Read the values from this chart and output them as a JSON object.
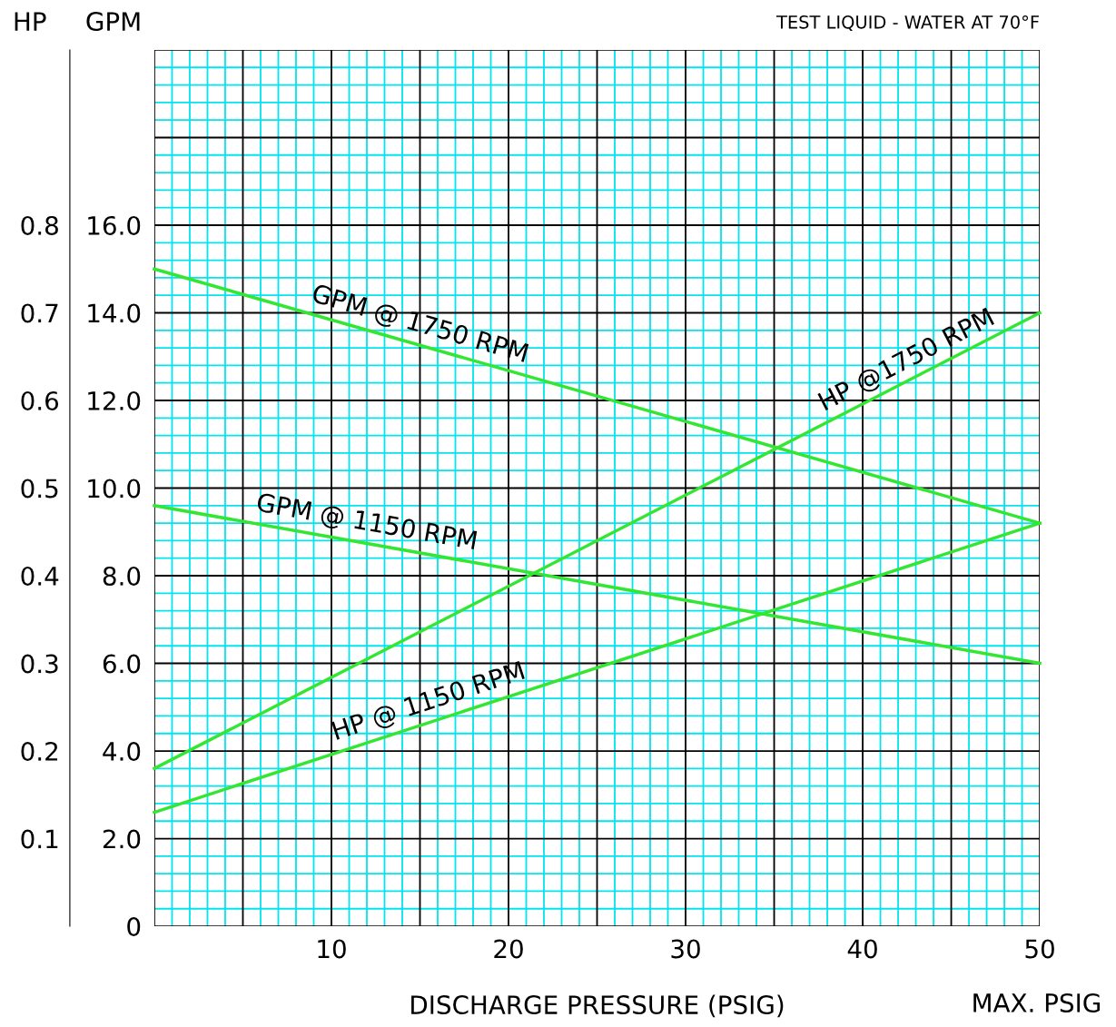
{
  "chart_data": {
    "type": "line",
    "xlabel": "DISCHARGE PRESSURE (PSIG)",
    "ylabel": "GPM",
    "y2label": "HP",
    "annotations": [
      "TEST LIQUID - WATER AT 70°F",
      "MAX. PSIG"
    ],
    "x": [
      0,
      50
    ],
    "series": [
      {
        "name": "GPM @ 1750 RPM",
        "color": "#33e633",
        "values": [
          15.0,
          9.2
        ]
      },
      {
        "name": "GPM @ 1150 RPM",
        "color": "#33e633",
        "values": [
          9.6,
          6.0
        ]
      },
      {
        "name": "HP @1750 RPM",
        "color": "#33e633",
        "values": [
          0.18,
          0.7
        ],
        "axis": "y2"
      },
      {
        "name": "HP @ 1150 RPM",
        "color": "#33e633",
        "values": [
          0.13,
          0.46
        ],
        "axis": "y2"
      }
    ],
    "xlim": [
      0,
      50
    ],
    "xticks": [
      {
        "value": 0,
        "label": null
      },
      {
        "value": 1,
        "label": null
      },
      {
        "value": 2,
        "label": null
      },
      {
        "value": 3,
        "label": null
      },
      {
        "value": 4,
        "label": null
      },
      {
        "value": 5,
        "label": null
      },
      {
        "value": 6,
        "label": null
      },
      {
        "value": 7,
        "label": null
      },
      {
        "value": 8,
        "label": null
      },
      {
        "value": 9,
        "label": null
      },
      10,
      {
        "value": 11,
        "label": null
      },
      {
        "value": 12,
        "label": null
      },
      {
        "value": 13,
        "label": null
      },
      {
        "value": 14,
        "label": null
      },
      {
        "value": 15,
        "label": null
      },
      {
        "value": 16,
        "label": null
      },
      {
        "value": 17,
        "label": null
      },
      {
        "value": 18,
        "label": null
      },
      {
        "value": 19,
        "label": null
      },
      20,
      {
        "value": 21,
        "label": null
      },
      {
        "value": 22,
        "label": null
      },
      {
        "value": 23,
        "label": null
      },
      {
        "value": 24,
        "label": null
      },
      {
        "value": 25,
        "label": null
      },
      {
        "value": 26,
        "label": null
      },
      {
        "value": 27,
        "label": null
      },
      {
        "value": 28,
        "label": null
      },
      {
        "value": 29,
        "label": null
      },
      30,
      {
        "value": 31,
        "label": null
      },
      {
        "value": 32,
        "label": null
      },
      {
        "value": 33,
        "label": null
      },
      {
        "value": 34,
        "label": null
      },
      {
        "value": 35,
        "label": null
      },
      {
        "value": 36,
        "label": null
      },
      {
        "value": 37,
        "label": null
      },
      {
        "value": 38,
        "label": null
      },
      {
        "value": 39,
        "label": null
      },
      40,
      {
        "value": 41,
        "label": null
      },
      {
        "value": 42,
        "label": null
      },
      {
        "value": 43,
        "label": null
      },
      {
        "value": 44,
        "label": null
      },
      {
        "value": 45,
        "label": null
      },
      {
        "value": 46,
        "label": null
      },
      {
        "value": 47,
        "label": null
      },
      {
        "value": 48,
        "label": null
      },
      {
        "value": 49,
        "label": null
      },
      50
    ],
    "ylim": [
      0,
      20
    ],
    "yticks": [
      0,
      {
        "value": 0.4,
        "label": null
      },
      {
        "value": 0.8,
        "label": null
      },
      {
        "value": 1.2,
        "label": null
      },
      {
        "value": 1.6,
        "label": null
      },
      {
        "value": 2,
        "label": "2.0"
      },
      {
        "value": 2.4,
        "label": null
      },
      {
        "value": 2.8,
        "label": null
      },
      {
        "value": 3.2,
        "label": null
      },
      {
        "value": 3.6,
        "label": null
      },
      {
        "value": 4,
        "label": "4.0"
      },
      {
        "value": 4.4,
        "label": null
      },
      {
        "value": 4.8,
        "label": null
      },
      {
        "value": 5.2,
        "label": null
      },
      {
        "value": 5.6,
        "label": null
      },
      {
        "value": 6,
        "label": "6.0"
      },
      {
        "value": 6.4,
        "label": null
      },
      {
        "value": 6.8,
        "label": null
      },
      {
        "value": 7.2,
        "label": null
      },
      {
        "value": 7.6,
        "label": null
      },
      {
        "value": 8,
        "label": "8.0"
      },
      {
        "value": 8.4,
        "label": null
      },
      {
        "value": 8.8,
        "label": null
      },
      {
        "value": 9.2,
        "label": null
      },
      {
        "value": 9.6,
        "label": null
      },
      {
        "value": 10,
        "label": "10.0"
      },
      {
        "value": 10.4,
        "label": null
      },
      {
        "value": 10.8,
        "label": null
      },
      {
        "value": 11.2,
        "label": null
      },
      {
        "value": 11.6,
        "label": null
      },
      {
        "value": 12,
        "label": "12.0"
      },
      {
        "value": 12.4,
        "label": null
      },
      {
        "value": 12.8,
        "label": null
      },
      {
        "value": 13.2,
        "label": null
      },
      {
        "value": 13.6,
        "label": null
      },
      {
        "value": 14,
        "label": "14.0"
      },
      {
        "value": 14.4,
        "label": null
      },
      {
        "value": 14.8,
        "label": null
      },
      {
        "value": 15.2,
        "label": null
      },
      {
        "value": 15.6,
        "label": null
      },
      {
        "value": 16,
        "label": "16.0"
      },
      {
        "value": 16.4,
        "label": null
      },
      {
        "value": 16.8,
        "label": null
      },
      {
        "value": 17.2,
        "label": null
      },
      {
        "value": 17.6,
        "label": null
      },
      {
        "value": 18,
        "label": null
      },
      {
        "value": 18.4,
        "label": null
      },
      {
        "value": 18.8,
        "label": null
      },
      {
        "value": 19.2,
        "label": null
      },
      {
        "value": 19.6,
        "label": null
      },
      {
        "value": 20,
        "label": null
      }
    ],
    "y2lim": [
      0,
      1.0
    ],
    "y2ticks": [
      0.1,
      0.2,
      0.3,
      0.4,
      0.5,
      0.6,
      0.7,
      0.8
    ],
    "grid": true,
    "marker": "none",
    "line_style": "solid"
  }
}
